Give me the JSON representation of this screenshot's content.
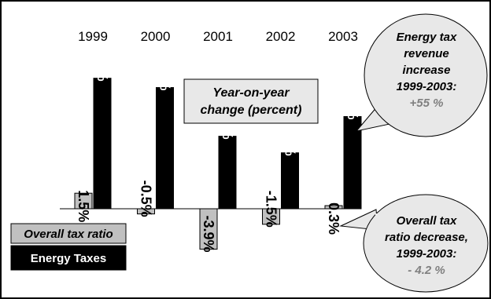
{
  "chart_data": {
    "type": "bar",
    "title": "Year-on-year change (percent)",
    "title_lines": [
      "Year-on-year",
      "change (percent)"
    ],
    "categories": [
      "1999",
      "2000",
      "2001",
      "2002",
      "2003"
    ],
    "series": [
      {
        "name": "Overall tax ratio",
        "values": [
          1.5,
          -0.5,
          -3.9,
          -1.5,
          0.3
        ],
        "labels": [
          "1.5%",
          "-0.5%",
          "-3.9%",
          "-1.5%",
          "0.3%"
        ],
        "color": "#c0c0c0"
      },
      {
        "name": "Energy Taxes",
        "values": [
          12.6,
          11.7,
          7.0,
          5.4,
          8.9
        ],
        "labels": [
          "12.6%",
          "11.7%",
          "7.0%",
          "5.4%",
          "8.9%"
        ],
        "color": "#000000"
      }
    ],
    "ylim": [
      -5,
      14
    ],
    "grid": false,
    "legend_position": "bottom-left",
    "annotations": [
      {
        "lines": [
          "Energy tax",
          "revenue",
          "increase",
          "1999-2003:"
        ],
        "highlight": "+55 %"
      },
      {
        "lines": [
          "Overall tax",
          "ratio decrease,",
          "1999-2003:"
        ],
        "highlight": "- 4.2 %"
      }
    ]
  },
  "colors": {
    "background": "#ffffff",
    "frame": "#000000",
    "bubble_fill": "#e8e8e8",
    "title_box_fill": "#e8e8e8",
    "highlight_text": "#808080"
  }
}
